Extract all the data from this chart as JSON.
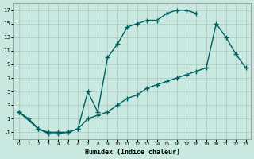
{
  "title": "",
  "xlabel": "Humidex (Indice chaleur)",
  "ylabel": "",
  "bg_color": "#c8e8e0",
  "grid_color": "#a8c8c0",
  "line_color": "#006060",
  "xlim": [
    -0.5,
    23.5
  ],
  "ylim": [
    -2,
    18
  ],
  "xticks": [
    0,
    1,
    2,
    3,
    4,
    5,
    6,
    7,
    8,
    9,
    10,
    11,
    12,
    13,
    14,
    15,
    16,
    17,
    18,
    19,
    20,
    21,
    22,
    23
  ],
  "yticks": [
    -1,
    1,
    3,
    5,
    7,
    9,
    11,
    13,
    15,
    17
  ],
  "curve1_x": [
    0,
    1,
    2,
    3,
    4,
    5,
    6,
    7,
    8,
    9,
    10,
    11,
    12,
    13,
    14,
    15,
    16,
    17,
    18
  ],
  "curve1_y": [
    2,
    1,
    -0.5,
    -1,
    -1,
    -1,
    -0.5,
    5,
    2,
    10,
    12,
    14.5,
    15,
    15.5,
    15.5,
    16.5,
    17,
    17,
    16.5
  ],
  "curve2_x": [
    0,
    2,
    3,
    4,
    5,
    6,
    7,
    8,
    9,
    10,
    11,
    12,
    13,
    14,
    15,
    16,
    17,
    18,
    19,
    20,
    21,
    22,
    23
  ],
  "curve2_y": [
    2,
    -0.5,
    -1.2,
    -1.2,
    -1,
    -0.5,
    1,
    1.5,
    2,
    3,
    4,
    4.5,
    5.5,
    6,
    6.5,
    7,
    7.5,
    8,
    8.5,
    15,
    13,
    10.5,
    8.5
  ],
  "marker": "+",
  "marker_size": 4,
  "line_width": 1.0
}
